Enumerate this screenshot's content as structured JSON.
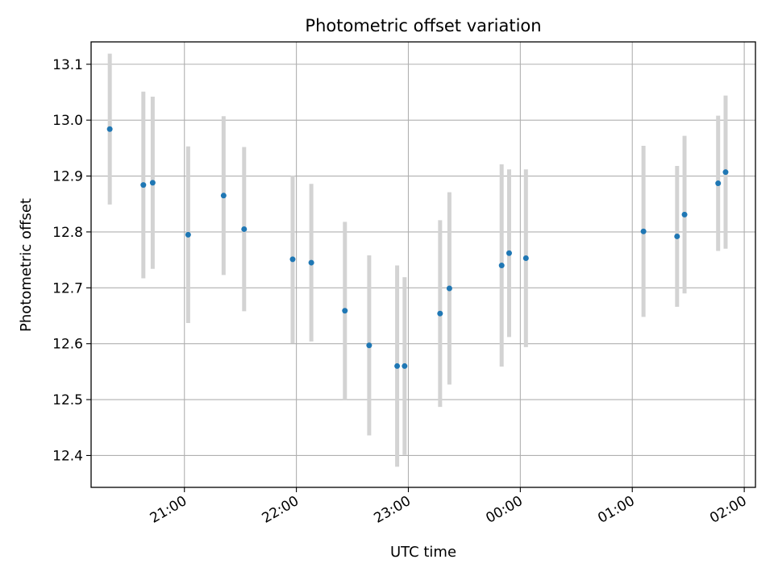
{
  "chart_data": {
    "type": "scatter",
    "title": "Photometric offset variation",
    "xlabel": "UTC time",
    "ylabel": "Photometric offset",
    "grid": true,
    "colors": {
      "point": "#1f77b4",
      "errorbar": "#d3d3d3",
      "grid": "#b0b0b0"
    },
    "xlim": [
      "20:10",
      "02:06"
    ],
    "ylim": [
      12.343,
      13.14
    ],
    "x_ticks": [
      "21:00",
      "22:00",
      "23:00",
      "00:00",
      "01:00",
      "02:00"
    ],
    "y_ticks": [
      "12.4",
      "12.5",
      "12.6",
      "12.7",
      "12.8",
      "12.9",
      "13.0",
      "13.1"
    ],
    "points": [
      {
        "x": "20:20",
        "y": 12.984,
        "yerr": 0.135
      },
      {
        "x": "20:38",
        "y": 12.884,
        "yerr": 0.167
      },
      {
        "x": "20:43",
        "y": 12.888,
        "yerr": 0.154
      },
      {
        "x": "21:02",
        "y": 12.795,
        "yerr": 0.158
      },
      {
        "x": "21:21",
        "y": 12.865,
        "yerr": 0.142
      },
      {
        "x": "21:32",
        "y": 12.805,
        "yerr": 0.147
      },
      {
        "x": "21:58",
        "y": 12.751,
        "yerr": 0.15
      },
      {
        "x": "22:08",
        "y": 12.745,
        "yerr": 0.141
      },
      {
        "x": "22:26",
        "y": 12.659,
        "yerr": 0.159
      },
      {
        "x": "22:39",
        "y": 12.597,
        "yerr": 0.161
      },
      {
        "x": "22:54",
        "y": 12.56,
        "yerr": 0.18
      },
      {
        "x": "22:58",
        "y": 12.56,
        "yerr": 0.159
      },
      {
        "x": "23:17",
        "y": 12.654,
        "yerr": 0.167
      },
      {
        "x": "23:22",
        "y": 12.699,
        "yerr": 0.172
      },
      {
        "x": "23:50",
        "y": 12.74,
        "yerr": 0.181
      },
      {
        "x": "23:54",
        "y": 12.762,
        "yerr": 0.15
      },
      {
        "x": "00:03",
        "y": 12.753,
        "yerr": 0.159
      },
      {
        "x": "01:06",
        "y": 12.801,
        "yerr": 0.153
      },
      {
        "x": "01:24",
        "y": 12.792,
        "yerr": 0.126
      },
      {
        "x": "01:28",
        "y": 12.831,
        "yerr": 0.141
      },
      {
        "x": "01:46",
        "y": 12.887,
        "yerr": 0.121
      },
      {
        "x": "01:50",
        "y": 12.907,
        "yerr": 0.137
      }
    ]
  }
}
